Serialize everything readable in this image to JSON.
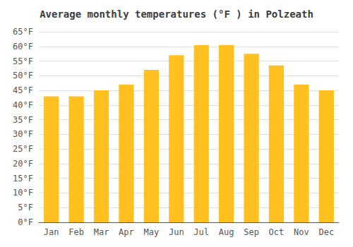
{
  "chart_data": {
    "type": "bar",
    "title": "Average monthly temperatures (°F ) in Polzeath",
    "categories": [
      "Jan",
      "Feb",
      "Mar",
      "Apr",
      "May",
      "Jun",
      "Jul",
      "Aug",
      "Sep",
      "Oct",
      "Nov",
      "Dec"
    ],
    "values": [
      43,
      43,
      45,
      47,
      52,
      57,
      60.5,
      60.5,
      57.5,
      53.5,
      47,
      45
    ],
    "color": "#FFC020",
    "ylim": [
      0,
      65
    ],
    "yticks": [
      {
        "value": 0,
        "label": "0°F"
      },
      {
        "value": 5,
        "label": "5°F"
      },
      {
        "value": 10,
        "label": "10°F"
      },
      {
        "value": 15,
        "label": "15°F"
      },
      {
        "value": 20,
        "label": "20°F"
      },
      {
        "value": 25,
        "label": "25°F"
      },
      {
        "value": 30,
        "label": "30°F"
      },
      {
        "value": 35,
        "label": "35°F"
      },
      {
        "value": 40,
        "label": "40°F"
      },
      {
        "value": 45,
        "label": "45°F"
      },
      {
        "value": 50,
        "label": "50°F"
      },
      {
        "value": 55,
        "label": "55°F"
      },
      {
        "value": 60,
        "label": "60°F"
      },
      {
        "value": 65,
        "label": "65°F"
      }
    ],
    "grid": true
  }
}
